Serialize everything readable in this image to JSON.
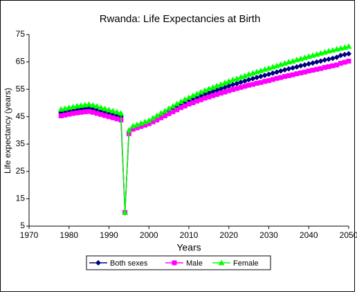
{
  "chart_data": {
    "type": "line",
    "title": "Rwanda:  Life Expectancies at Birth",
    "x_label": "Years",
    "y_label": "Life expectancy (years)",
    "x": [
      1978,
      1979,
      1980,
      1981,
      1982,
      1983,
      1984,
      1985,
      1986,
      1987,
      1988,
      1989,
      1990,
      1991,
      1992,
      1993,
      1994,
      1995,
      1996,
      1997,
      1998,
      1999,
      2000,
      2001,
      2002,
      2003,
      2004,
      2005,
      2006,
      2007,
      2008,
      2009,
      2010,
      2011,
      2012,
      2013,
      2014,
      2015,
      2016,
      2017,
      2018,
      2019,
      2020,
      2021,
      2022,
      2023,
      2024,
      2025,
      2026,
      2027,
      2028,
      2029,
      2030,
      2031,
      2032,
      2033,
      2034,
      2035,
      2036,
      2037,
      2038,
      2039,
      2040,
      2041,
      2042,
      2043,
      2044,
      2045,
      2046,
      2047,
      2048,
      2049,
      2050
    ],
    "series": [
      {
        "name": "Both sexes",
        "color": "#000080",
        "marker": "diamond",
        "values": [
          46.5,
          46.8,
          47.1,
          47.4,
          47.6,
          47.8,
          48.0,
          48.1,
          47.8,
          47.4,
          47.0,
          46.6,
          46.2,
          45.8,
          45.4,
          45.0,
          10.0,
          39.5,
          41.0,
          41.5,
          42.0,
          42.5,
          43.0,
          43.8,
          44.6,
          45.4,
          46.2,
          47.0,
          47.8,
          48.6,
          49.4,
          50.1,
          50.8,
          51.4,
          52.0,
          52.6,
          53.2,
          53.7,
          54.2,
          54.7,
          55.2,
          55.7,
          56.2,
          56.7,
          57.1,
          57.6,
          58.0,
          58.5,
          58.9,
          59.3,
          59.7,
          60.1,
          60.5,
          60.9,
          61.3,
          61.7,
          62.1,
          62.5,
          62.8,
          63.2,
          63.6,
          63.9,
          64.3,
          64.6,
          65.0,
          65.3,
          65.7,
          66.0,
          66.3,
          66.7,
          67.4,
          67.7,
          68.0
        ]
      },
      {
        "name": "Male",
        "color": "#ff00ff",
        "marker": "square",
        "values": [
          45.3,
          45.6,
          45.9,
          46.2,
          46.4,
          46.6,
          46.8,
          46.9,
          46.6,
          46.2,
          45.8,
          45.4,
          45.0,
          44.6,
          44.2,
          43.8,
          10.0,
          38.8,
          40.4,
          40.9,
          41.4,
          41.9,
          42.4,
          43.1,
          43.8,
          44.6,
          45.3,
          46.1,
          46.8,
          47.5,
          48.3,
          48.9,
          49.6,
          50.1,
          50.7,
          51.2,
          51.8,
          52.2,
          52.7,
          53.1,
          53.6,
          54.0,
          54.5,
          54.9,
          55.3,
          55.7,
          56.1,
          56.5,
          56.8,
          57.2,
          57.5,
          57.9,
          58.2,
          58.6,
          59.0,
          59.3,
          59.7,
          60.0,
          60.3,
          60.7,
          61.0,
          61.3,
          61.7,
          62.0,
          62.3,
          62.6,
          63.0,
          63.3,
          63.6,
          63.9,
          64.5,
          64.9,
          65.3
        ]
      },
      {
        "name": "Female",
        "color": "#00ff00",
        "marker": "triangle",
        "values": [
          47.7,
          48.0,
          48.3,
          48.6,
          48.9,
          49.1,
          49.3,
          49.5,
          49.2,
          48.8,
          48.3,
          47.9,
          47.5,
          47.1,
          46.7,
          46.3,
          10.0,
          40.1,
          41.6,
          42.1,
          42.6,
          43.1,
          43.6,
          44.5,
          45.4,
          46.3,
          47.1,
          48.0,
          48.8,
          49.7,
          50.5,
          51.3,
          52.0,
          52.7,
          53.3,
          54.0,
          54.6,
          55.2,
          55.7,
          56.3,
          56.8,
          57.4,
          57.9,
          58.5,
          58.9,
          59.5,
          59.9,
          60.5,
          60.9,
          61.4,
          61.8,
          62.3,
          62.7,
          63.2,
          63.6,
          64.1,
          64.5,
          65.0,
          65.3,
          65.8,
          66.2,
          66.6,
          67.0,
          67.4,
          67.8,
          68.2,
          68.6,
          69.0,
          69.3,
          69.7,
          70.0,
          70.3,
          70.7
        ]
      }
    ],
    "xlim": [
      1970,
      2050
    ],
    "xticks": [
      1970,
      1980,
      1990,
      2000,
      2010,
      2020,
      2030,
      2040,
      2050
    ],
    "ylim": [
      5,
      75
    ],
    "yticks": [
      5,
      15,
      25,
      35,
      45,
      55,
      65,
      75
    ],
    "grid": false,
    "legend": "bottom"
  }
}
